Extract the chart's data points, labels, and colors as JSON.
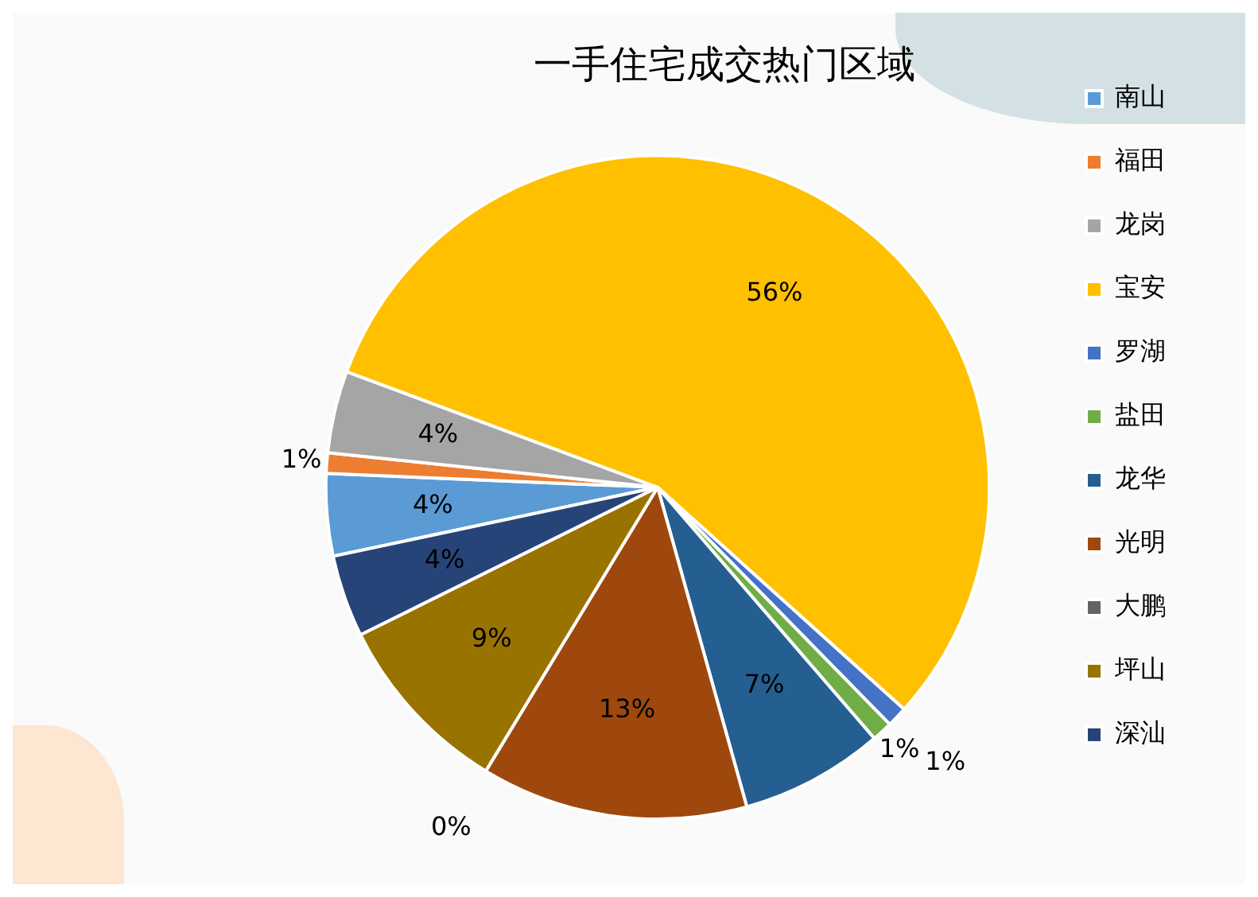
{
  "chart_data": {
    "type": "pie",
    "title": "一手住宅成交热门区域",
    "categories": [
      "南山",
      "福田",
      "龙岗",
      "宝安",
      "罗湖",
      "盐田",
      "龙华",
      "光明",
      "大鹏",
      "坪山",
      "深汕"
    ],
    "values": [
      4,
      1,
      4,
      56,
      1,
      1,
      7,
      13,
      0,
      9,
      4
    ],
    "colors": [
      "#5b9bd5",
      "#ed7d31",
      "#a5a5a5",
      "#ffc000",
      "#4472c4",
      "#70ad47",
      "#255e91",
      "#9e480e",
      "#636363",
      "#997300",
      "#264478"
    ],
    "value_labels": [
      "4%",
      "1%",
      "4%",
      "56%",
      "1%",
      "1%",
      "7%",
      "13%",
      "0%",
      "9%",
      "4%"
    ],
    "legend": "right"
  }
}
